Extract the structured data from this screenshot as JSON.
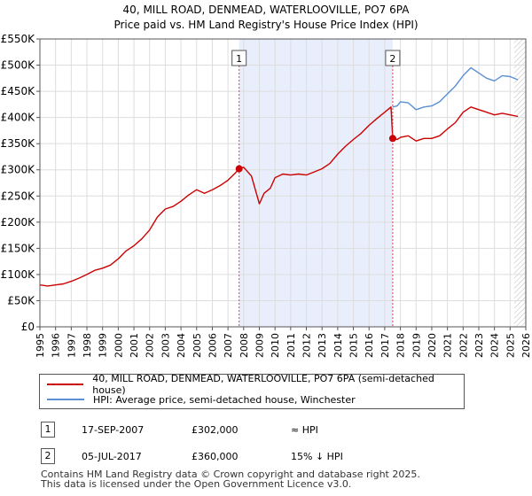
{
  "chart_data": {
    "type": "line",
    "title": "40, MILL ROAD, DENMEAD, WATERLOOVILLE, PO7 6PA",
    "subtitle": "Price paid vs. HM Land Registry's House Price Index (HPI)",
    "xlim": [
      1995,
      2026
    ],
    "ylim": [
      0,
      550000
    ],
    "x_ticks": [
      "1995",
      "1996",
      "1997",
      "1998",
      "1999",
      "2000",
      "2001",
      "2002",
      "2003",
      "2004",
      "2005",
      "2006",
      "2007",
      "2008",
      "2009",
      "2010",
      "2011",
      "2012",
      "2013",
      "2014",
      "2015",
      "2016",
      "2017",
      "2018",
      "2019",
      "2020",
      "2021",
      "2022",
      "2023",
      "2024",
      "2025",
      "2026"
    ],
    "y_ticks": [
      {
        "value": 0,
        "label": "£0"
      },
      {
        "value": 50000,
        "label": "£50K"
      },
      {
        "value": 100000,
        "label": "£100K"
      },
      {
        "value": 150000,
        "label": "£150K"
      },
      {
        "value": 200000,
        "label": "£200K"
      },
      {
        "value": 250000,
        "label": "£250K"
      },
      {
        "value": 300000,
        "label": "£300K"
      },
      {
        "value": 350000,
        "label": "£350K"
      },
      {
        "value": 400000,
        "label": "£400K"
      },
      {
        "value": 450000,
        "label": "£450K"
      },
      {
        "value": 500000,
        "label": "£500K"
      },
      {
        "value": 550000,
        "label": "£550K"
      }
    ],
    "grid": true,
    "shaded_region": {
      "from": 2007.71,
      "to": 2017.51
    },
    "forecast_hatch_from": 2025.25,
    "series": [
      {
        "name": "40, MILL ROAD, DENMEAD, WATERLOOVILLE, PO7 6PA (semi-detached house)",
        "color": "#cc0000",
        "x": [
          1995.0,
          1995.5,
          1996.0,
          1996.5,
          1997.0,
          1997.5,
          1998.0,
          1998.5,
          1999.0,
          1999.5,
          2000.0,
          2000.5,
          2001.0,
          2001.5,
          2002.0,
          2002.5,
          2003.0,
          2003.5,
          2004.0,
          2004.5,
          2005.0,
          2005.5,
          2006.0,
          2006.5,
          2007.0,
          2007.5,
          2007.71,
          2008.0,
          2008.5,
          2009.0,
          2009.3,
          2009.7,
          2010.0,
          2010.5,
          2011.0,
          2011.5,
          2012.0,
          2012.5,
          2013.0,
          2013.5,
          2014.0,
          2014.5,
          2015.0,
          2015.5,
          2016.0,
          2016.5,
          2017.0,
          2017.4,
          2017.51,
          2017.8,
          2018.0,
          2018.5,
          2019.0,
          2019.5,
          2020.0,
          2020.5,
          2021.0,
          2021.5,
          2022.0,
          2022.5,
          2023.0,
          2023.5,
          2024.0,
          2024.5,
          2025.0,
          2025.5
        ],
        "values": [
          80000,
          78000,
          80000,
          82000,
          87000,
          93000,
          100000,
          108000,
          112000,
          118000,
          130000,
          145000,
          155000,
          168000,
          185000,
          210000,
          225000,
          230000,
          240000,
          252000,
          262000,
          255000,
          262000,
          270000,
          280000,
          295000,
          302000,
          305000,
          288000,
          235000,
          255000,
          265000,
          285000,
          292000,
          290000,
          292000,
          290000,
          296000,
          302000,
          312000,
          330000,
          345000,
          358000,
          370000,
          385000,
          398000,
          410000,
          420000,
          360000,
          358000,
          362000,
          365000,
          355000,
          360000,
          360000,
          365000,
          378000,
          390000,
          410000,
          420000,
          415000,
          410000,
          405000,
          408000,
          405000,
          402000
        ]
      },
      {
        "name": "HPI: Average price, semi-detached house, Winchester",
        "color": "#5b8fd4",
        "x": [
          2017.51,
          2017.8,
          2018.0,
          2018.5,
          2019.0,
          2019.5,
          2020.0,
          2020.5,
          2021.0,
          2021.5,
          2022.0,
          2022.5,
          2023.0,
          2023.5,
          2024.0,
          2024.5,
          2025.0,
          2025.5
        ],
        "values": [
          420000,
          422000,
          430000,
          428000,
          415000,
          420000,
          422000,
          430000,
          445000,
          460000,
          480000,
          495000,
          485000,
          475000,
          470000,
          480000,
          478000,
          472000
        ]
      }
    ],
    "markers": [
      {
        "label": "1",
        "x": 2007.71,
        "value": 302000
      },
      {
        "label": "2",
        "x": 2017.51,
        "value": 360000
      }
    ]
  },
  "legend": {
    "property_label": "40, MILL ROAD, DENMEAD, WATERLOOVILLE, PO7 6PA (semi-detached house)",
    "hpi_label": "HPI: Average price, semi-detached house, Winchester",
    "property_color": "#cc0000",
    "hpi_color": "#5b8fd4"
  },
  "transactions": [
    {
      "num": "1",
      "date": "17-SEP-2007",
      "price": "£302,000",
      "hpi": "≈ HPI"
    },
    {
      "num": "2",
      "date": "05-JUL-2017",
      "price": "£360,000",
      "hpi": "15% ↓ HPI"
    }
  ],
  "footer": {
    "line1": "Contains HM Land Registry data © Crown copyright and database right 2025.",
    "line2": "This data is licensed under the Open Government Licence v3.0."
  }
}
